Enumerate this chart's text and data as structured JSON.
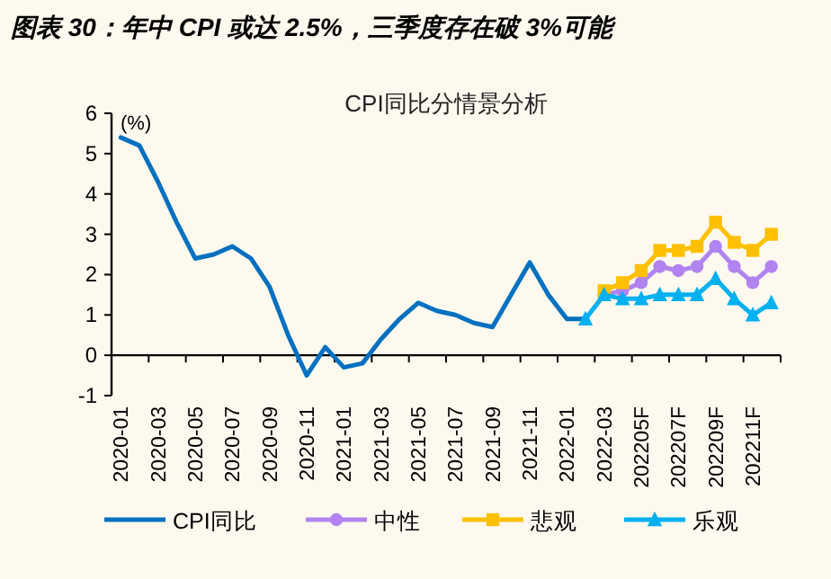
{
  "chart_data": {
    "type": "line",
    "title": "图表 30：年中 CPI 或达 2.5%，三季度存在破 3%可能",
    "subtitle": "CPI同比分情景分析",
    "ylabel": "(%)",
    "categories": [
      "2020-01",
      null,
      "2020-03",
      null,
      "2020-05",
      null,
      "2020-07",
      null,
      "2020-09",
      null,
      "2020-11",
      null,
      "2021-01",
      null,
      "2021-03",
      null,
      "2021-05",
      null,
      "2021-07",
      null,
      "2021-09",
      null,
      "2021-11",
      null,
      "2022-01",
      null,
      "2022-03",
      null,
      "202205F",
      null,
      "202207F",
      null,
      "202209F",
      null,
      "202211F",
      null
    ],
    "series": [
      {
        "name": "CPI同比",
        "color": "#0070c0",
        "marker": "none",
        "values": [
          5.4,
          5.2,
          4.3,
          3.3,
          2.4,
          2.5,
          2.7,
          2.4,
          1.7,
          0.5,
          -0.5,
          0.2,
          -0.3,
          -0.2,
          0.4,
          0.9,
          1.3,
          1.1,
          1.0,
          0.8,
          0.7,
          1.5,
          2.3,
          1.5,
          0.9,
          0.9,
          null,
          null,
          null,
          null,
          null,
          null,
          null,
          null,
          null,
          null
        ]
      },
      {
        "name": "中性",
        "color": "#b083f0",
        "marker": "circle",
        "values": [
          null,
          null,
          null,
          null,
          null,
          null,
          null,
          null,
          null,
          null,
          null,
          null,
          null,
          null,
          null,
          null,
          null,
          null,
          null,
          null,
          null,
          null,
          null,
          null,
          null,
          null,
          1.5,
          1.6,
          1.8,
          2.2,
          2.1,
          2.2,
          2.7,
          2.2,
          1.8,
          2.2
        ]
      },
      {
        "name": "悲观",
        "color": "#ffc000",
        "marker": "square",
        "values": [
          null,
          null,
          null,
          null,
          null,
          null,
          null,
          null,
          null,
          null,
          null,
          null,
          null,
          null,
          null,
          null,
          null,
          null,
          null,
          null,
          null,
          null,
          null,
          null,
          null,
          null,
          1.6,
          1.8,
          2.1,
          2.6,
          2.6,
          2.7,
          3.3,
          2.8,
          2.6,
          3.0
        ]
      },
      {
        "name": "乐观",
        "color": "#00b0f0",
        "marker": "triangle",
        "values": [
          null,
          null,
          null,
          null,
          null,
          null,
          null,
          null,
          null,
          null,
          null,
          null,
          null,
          null,
          null,
          null,
          null,
          null,
          null,
          null,
          null,
          null,
          null,
          null,
          null,
          0.9,
          1.5,
          1.4,
          1.4,
          1.5,
          1.5,
          1.5,
          1.9,
          1.4,
          1.0,
          1.3
        ]
      }
    ],
    "ylim": [
      -1,
      6
    ],
    "yticks": [
      -1,
      0,
      1,
      2,
      3,
      4,
      5,
      6
    ],
    "legend": "bottom",
    "grid": false,
    "line_style": "solid"
  }
}
